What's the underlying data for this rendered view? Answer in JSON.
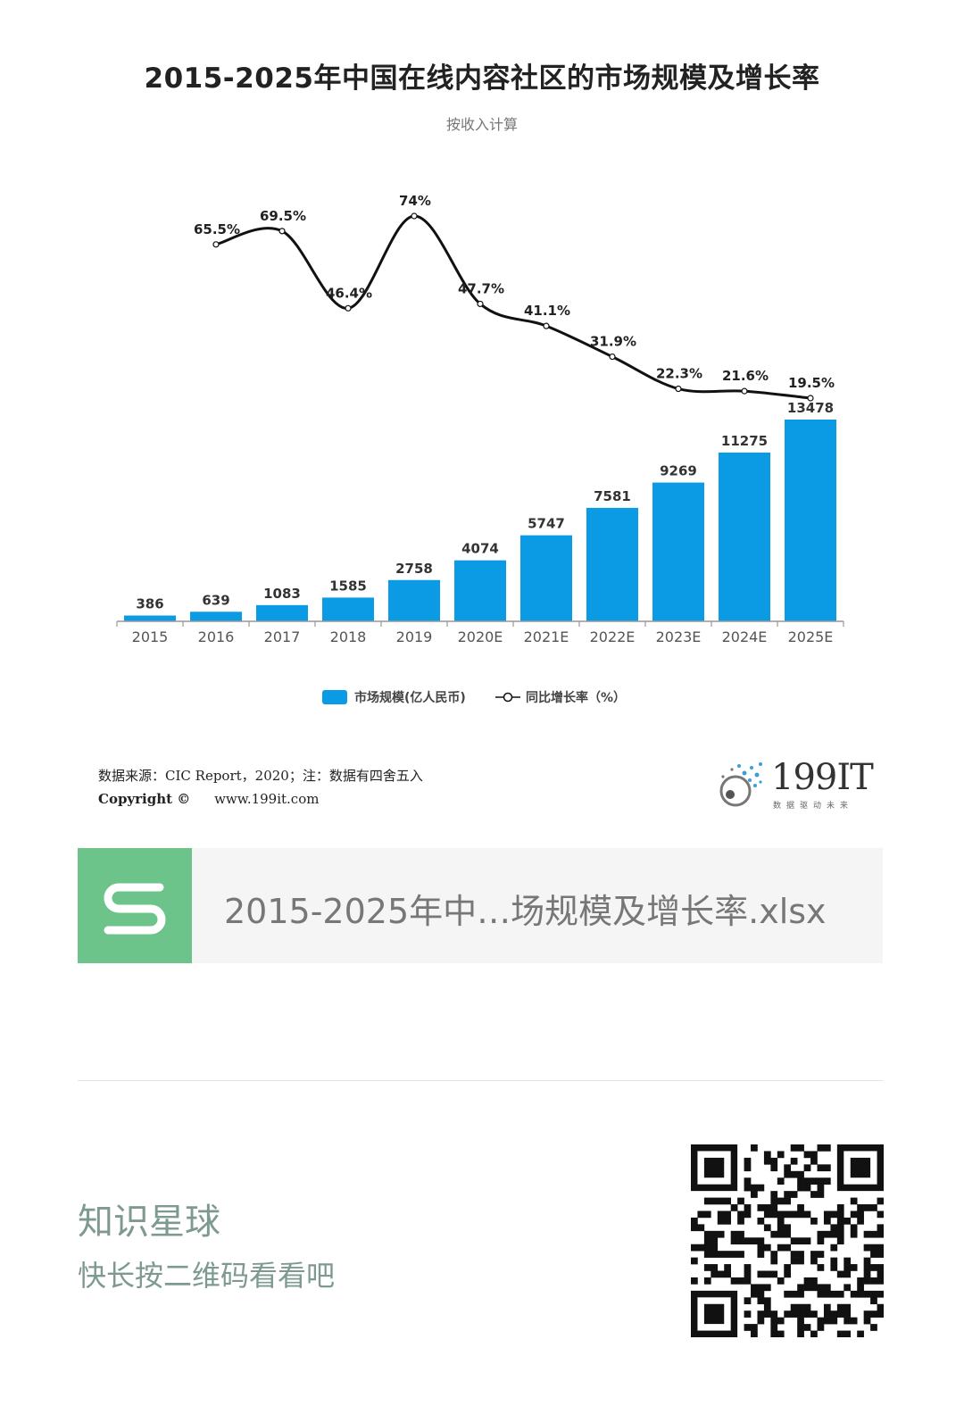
{
  "chart_data": {
    "type": "bar",
    "title": "2015-2025年中国在线内容社区的市场规模及增长率",
    "subtitle": "按收入计算",
    "categories": [
      "2015",
      "2016",
      "2017",
      "2018",
      "2019",
      "2020E",
      "2021E",
      "2022E",
      "2023E",
      "2024E",
      "2025E"
    ],
    "series": [
      {
        "name": "市场规模(亿人民币)",
        "type": "bar",
        "values": [
          386,
          639,
          1083,
          1585,
          2758,
          4074,
          5747,
          7581,
          9269,
          11275,
          13478
        ]
      },
      {
        "name": "同比增长率（%）",
        "type": "line",
        "values": [
          null,
          65.5,
          69.5,
          46.4,
          74,
          47.7,
          41.1,
          31.9,
          22.3,
          21.6,
          19.5
        ],
        "labels": [
          "",
          "65.5%",
          "69.5%",
          "46.4%",
          "74%",
          "47.7%",
          "41.1%",
          "31.9%",
          "22.3%",
          "21.6%",
          "19.5%"
        ]
      }
    ],
    "ylim": [
      0,
      13478
    ],
    "legend": "bottom",
    "grid": false,
    "colors": {
      "bar": "#0a9be4",
      "line": "#111111"
    }
  },
  "footer": {
    "source": "数据来源：CIC Report，2020；注：数据有四舍五入",
    "copyright_label": "Copyright ©",
    "website": "www.199it.com",
    "brand": "199IT",
    "tagline": "数据驱动未来"
  },
  "attachment": {
    "filename": "2015-2025年中…场规模及增长率.xlsx",
    "icon": "spreadsheet-s-icon",
    "icon_color": "#6cc48a"
  },
  "promo": {
    "title": "知识星球",
    "subtitle": "快长按二维码看看吧",
    "qr_icon": "qr-code-icon"
  }
}
